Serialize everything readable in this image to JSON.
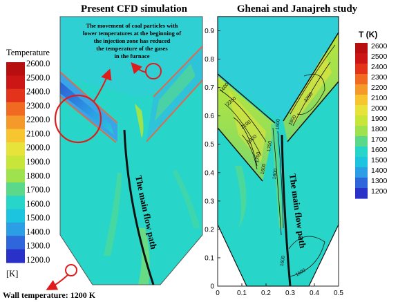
{
  "left_panel": {
    "title": "Present CFD simulation",
    "legend_title": "Temperature",
    "legend_unit": "[K]",
    "legend_values": [
      "2600.0",
      "2500.0",
      "2400.0",
      "2300.0",
      "2200.0",
      "2100.0",
      "2000.0",
      "1900.0",
      "1800.0",
      "1700.0",
      "1600.0",
      "1500.0",
      "1400.0",
      "1300.0",
      "1200.0"
    ],
    "annotation": [
      "The movement of coal particles with",
      "lower temperatures at the beginning of",
      "the injection zone has reduced",
      "the temperature of the gases",
      "in the furnace"
    ],
    "flow_label": "The main flow path",
    "wall_note": "Wall temperature: 1200 K"
  },
  "right_panel": {
    "title": "Ghenai  and  Janajreh study",
    "legend_title": "T (K)",
    "legend_values": [
      "2600",
      "2500",
      "2400",
      "2300",
      "2200",
      "2100",
      "2000",
      "1900",
      "1800",
      "1700",
      "1600",
      "1500",
      "1400",
      "1300",
      "1200"
    ],
    "flow_label": "The main flow path",
    "contour_labels": [
      "1600",
      "2200",
      "2100",
      "1900",
      "1700",
      "1600",
      "1700",
      "1600",
      "1600",
      "2200",
      "1600",
      "1600",
      "1600"
    ]
  },
  "colors": {
    "scale": [
      "#2a31c9",
      "#2f66db",
      "#2c9ee6",
      "#1cc4e0",
      "#27d6c8",
      "#5bd88a",
      "#9ee24e",
      "#c8e63a",
      "#e8e33a",
      "#f7c530",
      "#f59a2a",
      "#f06a22",
      "#e3341b",
      "#cc1515",
      "#b70f0f"
    ],
    "annotation_red": "#e01b1b"
  },
  "chart_data": {
    "type": "heatmap",
    "title": "Ghenai  and  Janajreh study",
    "xlabel": "",
    "ylabel": "",
    "x_ticks": [
      0,
      0.1,
      0.2,
      0.3,
      0.4,
      0.5
    ],
    "y_ticks": [
      0,
      0.1,
      0.2,
      0.3,
      0.4,
      0.5,
      0.6,
      0.7,
      0.8,
      0.9
    ],
    "xlim": [
      0,
      0.5
    ],
    "ylim": [
      0,
      0.95
    ],
    "colorbar_title": "T (K)",
    "colorbar_range": [
      1200,
      2600
    ]
  }
}
